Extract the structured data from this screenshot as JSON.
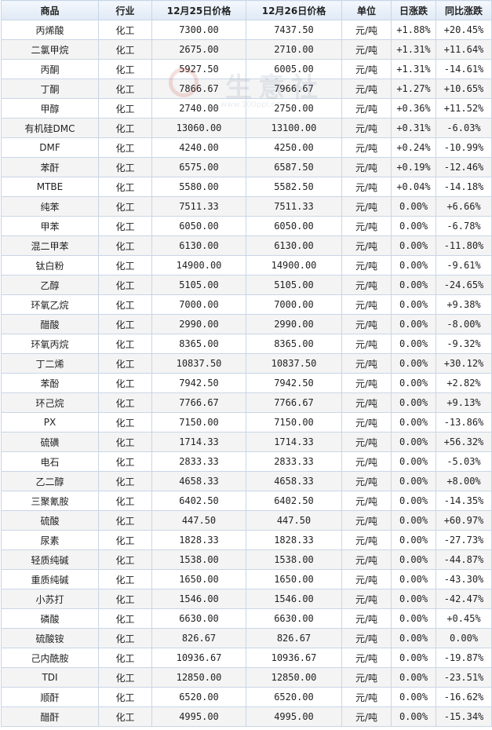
{
  "headers": {
    "product": "商品",
    "industry": "行业",
    "price1": "12月25日价格",
    "price2": "12月26日价格",
    "unit": "单位",
    "daily": "日涨跌",
    "yoy": "同比涨跌"
  },
  "watermark": {
    "text": "生意社",
    "url": "www.100ppi.com"
  },
  "rows": [
    {
      "name": "丙烯酸",
      "industry": "化工",
      "p1": "7300.00",
      "p2": "7437.50",
      "unit": "元/吨",
      "daily": "+1.88%",
      "yoy": "+20.45%"
    },
    {
      "name": "二氯甲烷",
      "industry": "化工",
      "p1": "2675.00",
      "p2": "2710.00",
      "unit": "元/吨",
      "daily": "+1.31%",
      "yoy": "+11.64%"
    },
    {
      "name": "丙酮",
      "industry": "化工",
      "p1": "5927.50",
      "p2": "6005.00",
      "unit": "元/吨",
      "daily": "+1.31%",
      "yoy": "-14.61%"
    },
    {
      "name": "丁酮",
      "industry": "化工",
      "p1": "7866.67",
      "p2": "7966.67",
      "unit": "元/吨",
      "daily": "+1.27%",
      "yoy": "+10.65%"
    },
    {
      "name": "甲醇",
      "industry": "化工",
      "p1": "2740.00",
      "p2": "2750.00",
      "unit": "元/吨",
      "daily": "+0.36%",
      "yoy": "+11.52%"
    },
    {
      "name": "有机硅DMC",
      "industry": "化工",
      "p1": "13060.00",
      "p2": "13100.00",
      "unit": "元/吨",
      "daily": "+0.31%",
      "yoy": "-6.03%"
    },
    {
      "name": "DMF",
      "industry": "化工",
      "p1": "4240.00",
      "p2": "4250.00",
      "unit": "元/吨",
      "daily": "+0.24%",
      "yoy": "-10.99%"
    },
    {
      "name": "苯酐",
      "industry": "化工",
      "p1": "6575.00",
      "p2": "6587.50",
      "unit": "元/吨",
      "daily": "+0.19%",
      "yoy": "-12.46%"
    },
    {
      "name": "MTBE",
      "industry": "化工",
      "p1": "5580.00",
      "p2": "5582.50",
      "unit": "元/吨",
      "daily": "+0.04%",
      "yoy": "-14.18%"
    },
    {
      "name": "纯苯",
      "industry": "化工",
      "p1": "7511.33",
      "p2": "7511.33",
      "unit": "元/吨",
      "daily": "0.00%",
      "yoy": "+6.66%"
    },
    {
      "name": "甲苯",
      "industry": "化工",
      "p1": "6050.00",
      "p2": "6050.00",
      "unit": "元/吨",
      "daily": "0.00%",
      "yoy": "-6.78%"
    },
    {
      "name": "混二甲苯",
      "industry": "化工",
      "p1": "6130.00",
      "p2": "6130.00",
      "unit": "元/吨",
      "daily": "0.00%",
      "yoy": "-11.80%"
    },
    {
      "name": "钛白粉",
      "industry": "化工",
      "p1": "14900.00",
      "p2": "14900.00",
      "unit": "元/吨",
      "daily": "0.00%",
      "yoy": "-9.61%"
    },
    {
      "name": "乙醇",
      "industry": "化工",
      "p1": "5105.00",
      "p2": "5105.00",
      "unit": "元/吨",
      "daily": "0.00%",
      "yoy": "-24.65%"
    },
    {
      "name": "环氧乙烷",
      "industry": "化工",
      "p1": "7000.00",
      "p2": "7000.00",
      "unit": "元/吨",
      "daily": "0.00%",
      "yoy": "+9.38%"
    },
    {
      "name": "醋酸",
      "industry": "化工",
      "p1": "2990.00",
      "p2": "2990.00",
      "unit": "元/吨",
      "daily": "0.00%",
      "yoy": "-8.00%"
    },
    {
      "name": "环氧丙烷",
      "industry": "化工",
      "p1": "8365.00",
      "p2": "8365.00",
      "unit": "元/吨",
      "daily": "0.00%",
      "yoy": "-9.32%"
    },
    {
      "name": "丁二烯",
      "industry": "化工",
      "p1": "10837.50",
      "p2": "10837.50",
      "unit": "元/吨",
      "daily": "0.00%",
      "yoy": "+30.12%"
    },
    {
      "name": "苯酚",
      "industry": "化工",
      "p1": "7942.50",
      "p2": "7942.50",
      "unit": "元/吨",
      "daily": "0.00%",
      "yoy": "+2.82%"
    },
    {
      "name": "环己烷",
      "industry": "化工",
      "p1": "7766.67",
      "p2": "7766.67",
      "unit": "元/吨",
      "daily": "0.00%",
      "yoy": "+9.13%"
    },
    {
      "name": "PX",
      "industry": "化工",
      "p1": "7150.00",
      "p2": "7150.00",
      "unit": "元/吨",
      "daily": "0.00%",
      "yoy": "-13.86%"
    },
    {
      "name": "硫磺",
      "industry": "化工",
      "p1": "1714.33",
      "p2": "1714.33",
      "unit": "元/吨",
      "daily": "0.00%",
      "yoy": "+56.32%"
    },
    {
      "name": "电石",
      "industry": "化工",
      "p1": "2833.33",
      "p2": "2833.33",
      "unit": "元/吨",
      "daily": "0.00%",
      "yoy": "-5.03%"
    },
    {
      "name": "乙二醇",
      "industry": "化工",
      "p1": "4658.33",
      "p2": "4658.33",
      "unit": "元/吨",
      "daily": "0.00%",
      "yoy": "+8.00%"
    },
    {
      "name": "三聚氰胺",
      "industry": "化工",
      "p1": "6402.50",
      "p2": "6402.50",
      "unit": "元/吨",
      "daily": "0.00%",
      "yoy": "-14.35%"
    },
    {
      "name": "硫酸",
      "industry": "化工",
      "p1": "447.50",
      "p2": "447.50",
      "unit": "元/吨",
      "daily": "0.00%",
      "yoy": "+60.97%"
    },
    {
      "name": "尿素",
      "industry": "化工",
      "p1": "1828.33",
      "p2": "1828.33",
      "unit": "元/吨",
      "daily": "0.00%",
      "yoy": "-27.73%"
    },
    {
      "name": "轻质纯碱",
      "industry": "化工",
      "p1": "1538.00",
      "p2": "1538.00",
      "unit": "元/吨",
      "daily": "0.00%",
      "yoy": "-44.87%"
    },
    {
      "name": "重质纯碱",
      "industry": "化工",
      "p1": "1650.00",
      "p2": "1650.00",
      "unit": "元/吨",
      "daily": "0.00%",
      "yoy": "-43.30%"
    },
    {
      "name": "小苏打",
      "industry": "化工",
      "p1": "1546.00",
      "p2": "1546.00",
      "unit": "元/吨",
      "daily": "0.00%",
      "yoy": "-42.47%"
    },
    {
      "name": "磷酸",
      "industry": "化工",
      "p1": "6630.00",
      "p2": "6630.00",
      "unit": "元/吨",
      "daily": "0.00%",
      "yoy": "+0.45%"
    },
    {
      "name": "硫酸铵",
      "industry": "化工",
      "p1": "826.67",
      "p2": "826.67",
      "unit": "元/吨",
      "daily": "0.00%",
      "yoy": "0.00%"
    },
    {
      "name": "己内酰胺",
      "industry": "化工",
      "p1": "10936.67",
      "p2": "10936.67",
      "unit": "元/吨",
      "daily": "0.00%",
      "yoy": "-19.87%"
    },
    {
      "name": "TDI",
      "industry": "化工",
      "p1": "12850.00",
      "p2": "12850.00",
      "unit": "元/吨",
      "daily": "0.00%",
      "yoy": "-23.51%"
    },
    {
      "name": "顺酐",
      "industry": "化工",
      "p1": "6520.00",
      "p2": "6520.00",
      "unit": "元/吨",
      "daily": "0.00%",
      "yoy": "-16.62%"
    },
    {
      "name": "醋酐",
      "industry": "化工",
      "p1": "4995.00",
      "p2": "4995.00",
      "unit": "元/吨",
      "daily": "0.00%",
      "yoy": "-15.34%"
    }
  ]
}
